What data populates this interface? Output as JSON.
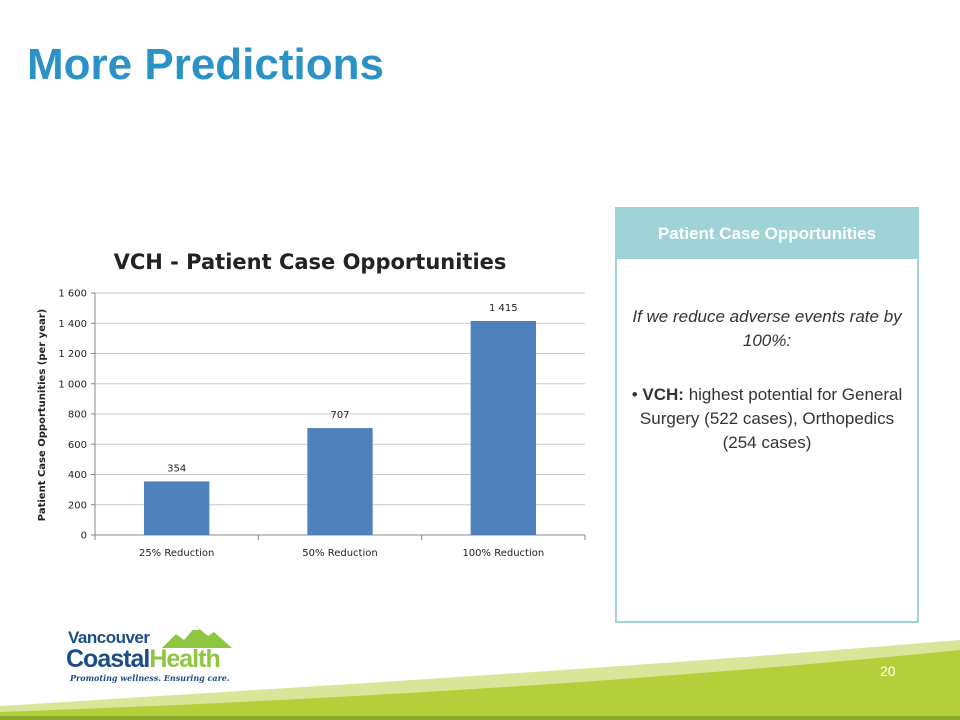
{
  "slide": {
    "title": "More Predictions",
    "page_number": "20"
  },
  "chart_data": {
    "type": "bar",
    "title": "VCH - Patient Case Opportunities",
    "ylabel": "Patient Case Opportunities (per year)",
    "xlabel": "",
    "categories": [
      "25% Reduction",
      "50% Reduction",
      "100% Reduction"
    ],
    "values": [
      354,
      707,
      1415
    ],
    "data_labels": [
      "354",
      "707",
      "1 415"
    ],
    "ylim": [
      0,
      1600
    ],
    "yticks": [
      0,
      200,
      400,
      600,
      800,
      1000,
      1200,
      1400,
      1600
    ],
    "ytick_labels": [
      "0",
      "200",
      "400",
      "600",
      "800",
      "1 000",
      "1 200",
      "1 400",
      "1 600"
    ],
    "grid": true,
    "legend": "none",
    "bar_color": "#4f81bd"
  },
  "panel": {
    "header": "Patient Case Opportunities",
    "intro": "If we reduce adverse events rate by 100%:",
    "bullet_prefix": "• ",
    "bullet_bold": "VCH:",
    "bullet_text": " highest potential for General Surgery (522 cases), Orthopedics (254 cases)",
    "header_color": "#9fd3d7"
  },
  "logo": {
    "line1": "Vancouver",
    "line2a": "Coastal",
    "line2b": "Health",
    "tagline": "Promoting wellness. Ensuring care."
  },
  "colors": {
    "title": "#2a92c6",
    "footer_green": "#b5cf3a",
    "footer_light": "#d9e69a"
  }
}
